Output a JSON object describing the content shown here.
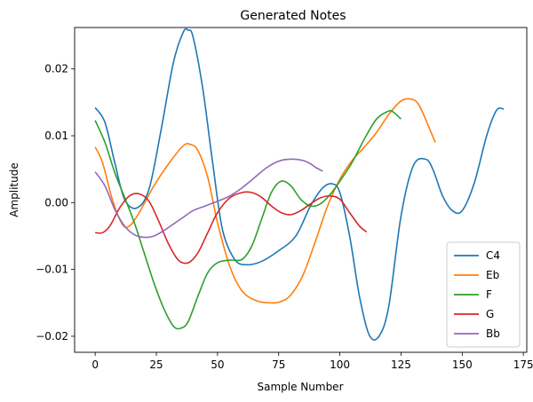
{
  "chart_data": {
    "type": "line",
    "title": "Generated Notes",
    "xlabel": "Sample Number",
    "ylabel": "Amplitude",
    "xlim": [
      -8.4,
      176.4
    ],
    "ylim": [
      -0.0224,
      0.0262
    ],
    "xticks": [
      0,
      25,
      50,
      75,
      100,
      125,
      150,
      175
    ],
    "xtick_labels": [
      "0",
      "25",
      "50",
      "75",
      "100",
      "125",
      "150",
      "175"
    ],
    "yticks": [
      -0.02,
      -0.01,
      0.0,
      0.01,
      0.02
    ],
    "ytick_labels": [
      "−0.02",
      "−0.01",
      "0.00",
      "0.01",
      "0.02"
    ],
    "grid": false,
    "legend_position": "lower-right",
    "series": [
      {
        "name": "C4",
        "color": "#1f77b4",
        "x": [
          0,
          4,
          8,
          12,
          17,
          22,
          27,
          32,
          36,
          38,
          40,
          44,
          48,
          52,
          57,
          62,
          68,
          75,
          82,
          88,
          93,
          97,
          100,
          104,
          108,
          112,
          116,
          120,
          125,
          130,
          135,
          138,
          142,
          146,
          150,
          155,
          160,
          164,
          167
        ],
        "y": [
          0.0142,
          0.012,
          0.006,
          0.0005,
          -0.0008,
          0.002,
          0.011,
          0.021,
          0.0255,
          0.0258,
          0.0248,
          0.017,
          0.006,
          -0.004,
          -0.0085,
          -0.0093,
          -0.0088,
          -0.0072,
          -0.005,
          -0.0005,
          0.0022,
          0.0028,
          0.0015,
          -0.005,
          -0.014,
          -0.0198,
          -0.02,
          -0.0155,
          -0.002,
          0.0055,
          0.0065,
          0.005,
          0.001,
          -0.0012,
          -0.0012,
          0.003,
          0.01,
          0.0138,
          0.014
        ]
      },
      {
        "name": "Eb",
        "color": "#ff7f0e",
        "x": [
          0,
          3,
          7,
          11,
          14,
          18,
          24,
          30,
          36,
          39,
          42,
          46,
          50,
          55,
          60,
          66,
          72,
          76,
          80,
          85,
          90,
          95,
          100,
          105,
          110,
          115,
          120,
          125,
          129,
          132,
          135,
          139
        ],
        "y": [
          0.0083,
          0.006,
          0.0005,
          -0.0032,
          -0.0035,
          -0.0015,
          0.0025,
          0.0058,
          0.0085,
          0.0087,
          0.0078,
          0.0038,
          -0.003,
          -0.0095,
          -0.0132,
          -0.0147,
          -0.015,
          -0.0148,
          -0.0138,
          -0.0108,
          -0.0058,
          -0.0005,
          0.0035,
          0.0063,
          0.0083,
          0.0105,
          0.0132,
          0.0152,
          0.0155,
          0.0148,
          0.0125,
          0.009
        ]
      },
      {
        "name": "F",
        "color": "#2ca02c",
        "x": [
          0,
          4,
          8,
          12,
          16,
          20,
          24,
          28,
          32,
          35,
          38,
          42,
          46,
          50,
          55,
          60,
          64,
          68,
          72,
          76,
          80,
          84,
          88,
          92,
          96,
          100,
          105,
          110,
          115,
          120,
          122,
          125
        ],
        "y": [
          0.0123,
          0.009,
          0.0045,
          0.0008,
          -0.003,
          -0.0075,
          -0.012,
          -0.0158,
          -0.0185,
          -0.0188,
          -0.0178,
          -0.014,
          -0.0105,
          -0.009,
          -0.0086,
          -0.0085,
          -0.0065,
          -0.0025,
          0.0015,
          0.0032,
          0.0025,
          0.0005,
          -0.0005,
          -0.0002,
          0.0012,
          0.0032,
          0.006,
          0.0095,
          0.0125,
          0.0137,
          0.0135,
          0.0125
        ]
      },
      {
        "name": "G",
        "color": "#d62728",
        "x": [
          0,
          3,
          6,
          10,
          14,
          18,
          22,
          26,
          30,
          34,
          38,
          42,
          46,
          50,
          55,
          60,
          64,
          68,
          72,
          76,
          80,
          84,
          88,
          92,
          96,
          100,
          104,
          108,
          111
        ],
        "y": [
          -0.0045,
          -0.0045,
          -0.0035,
          -0.0008,
          0.001,
          0.0013,
          0.0002,
          -0.0028,
          -0.0062,
          -0.0086,
          -0.009,
          -0.0075,
          -0.0045,
          -0.0015,
          0.0007,
          0.0015,
          0.0015,
          0.0008,
          -0.0005,
          -0.0015,
          -0.0018,
          -0.0012,
          -0.0002,
          0.0007,
          0.001,
          0.0005,
          -0.0015,
          -0.0035,
          -0.0044
        ]
      },
      {
        "name": "Bb",
        "color": "#9467bd",
        "x": [
          0,
          4,
          8,
          12,
          16,
          20,
          24,
          28,
          32,
          36,
          40,
          45,
          50,
          55,
          60,
          65,
          70,
          75,
          80,
          85,
          88,
          90,
          93
        ],
        "y": [
          0.0046,
          0.0025,
          -0.001,
          -0.0035,
          -0.0048,
          -0.0052,
          -0.005,
          -0.0042,
          -0.0032,
          -0.0022,
          -0.0012,
          -0.0005,
          0.0002,
          0.001,
          0.0022,
          0.0037,
          0.0052,
          0.0062,
          0.0065,
          0.0063,
          0.0058,
          0.0053,
          0.0047
        ]
      }
    ]
  }
}
